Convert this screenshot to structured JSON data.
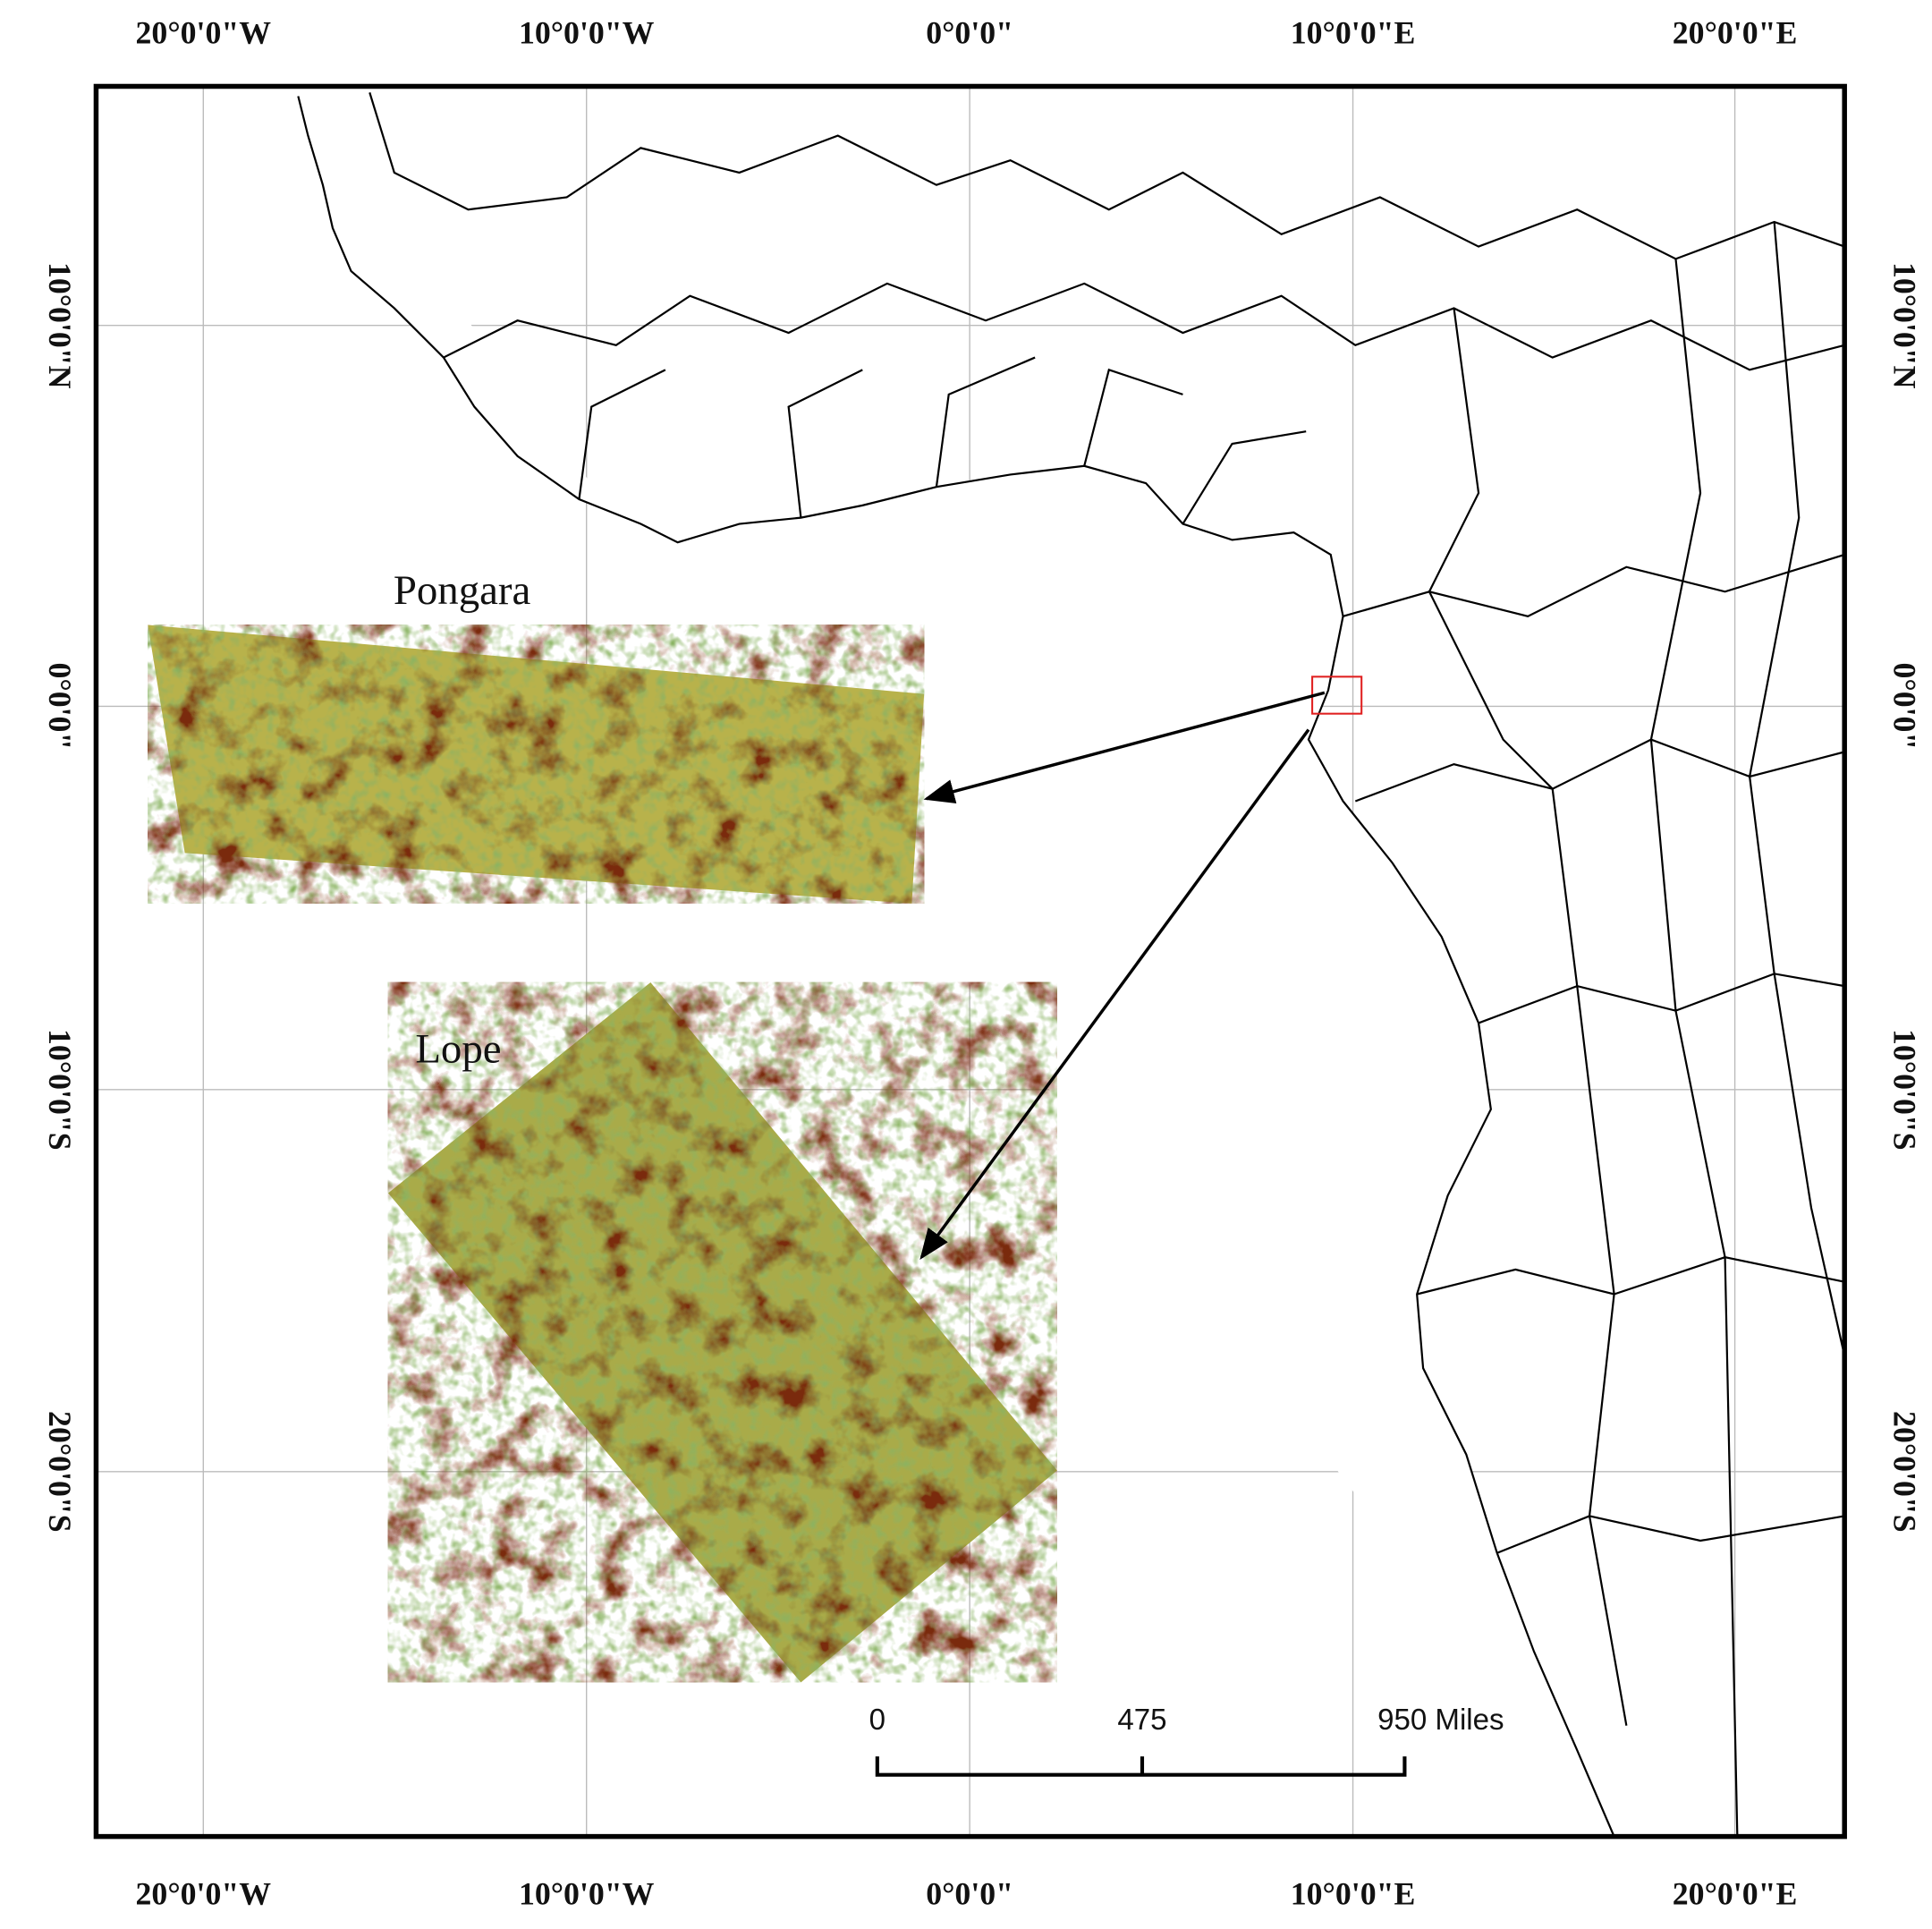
{
  "map": {
    "top_labels": [
      "20°0'0\"W",
      "10°0'0\"W",
      "0°0'0\"",
      "10°0'0\"E",
      "20°0'0\"E"
    ],
    "bottom_labels": [
      "20°0'0\"W",
      "10°0'0\"W",
      "0°0'0\"",
      "10°0'0\"E",
      "20°0'0\"E"
    ],
    "left_labels": [
      "10°0'0\"N",
      "0°0'0\"",
      "10°0'0\"S",
      "20°0'0\"S"
    ],
    "right_labels": [
      "10°0'0\"N",
      "0°0'0\"",
      "10°0'0\"S",
      "20°0'0\"S"
    ],
    "places": [
      "Pongara",
      "Lope"
    ],
    "scale_bar": [
      "0",
      "475",
      "950 Miles"
    ]
  }
}
